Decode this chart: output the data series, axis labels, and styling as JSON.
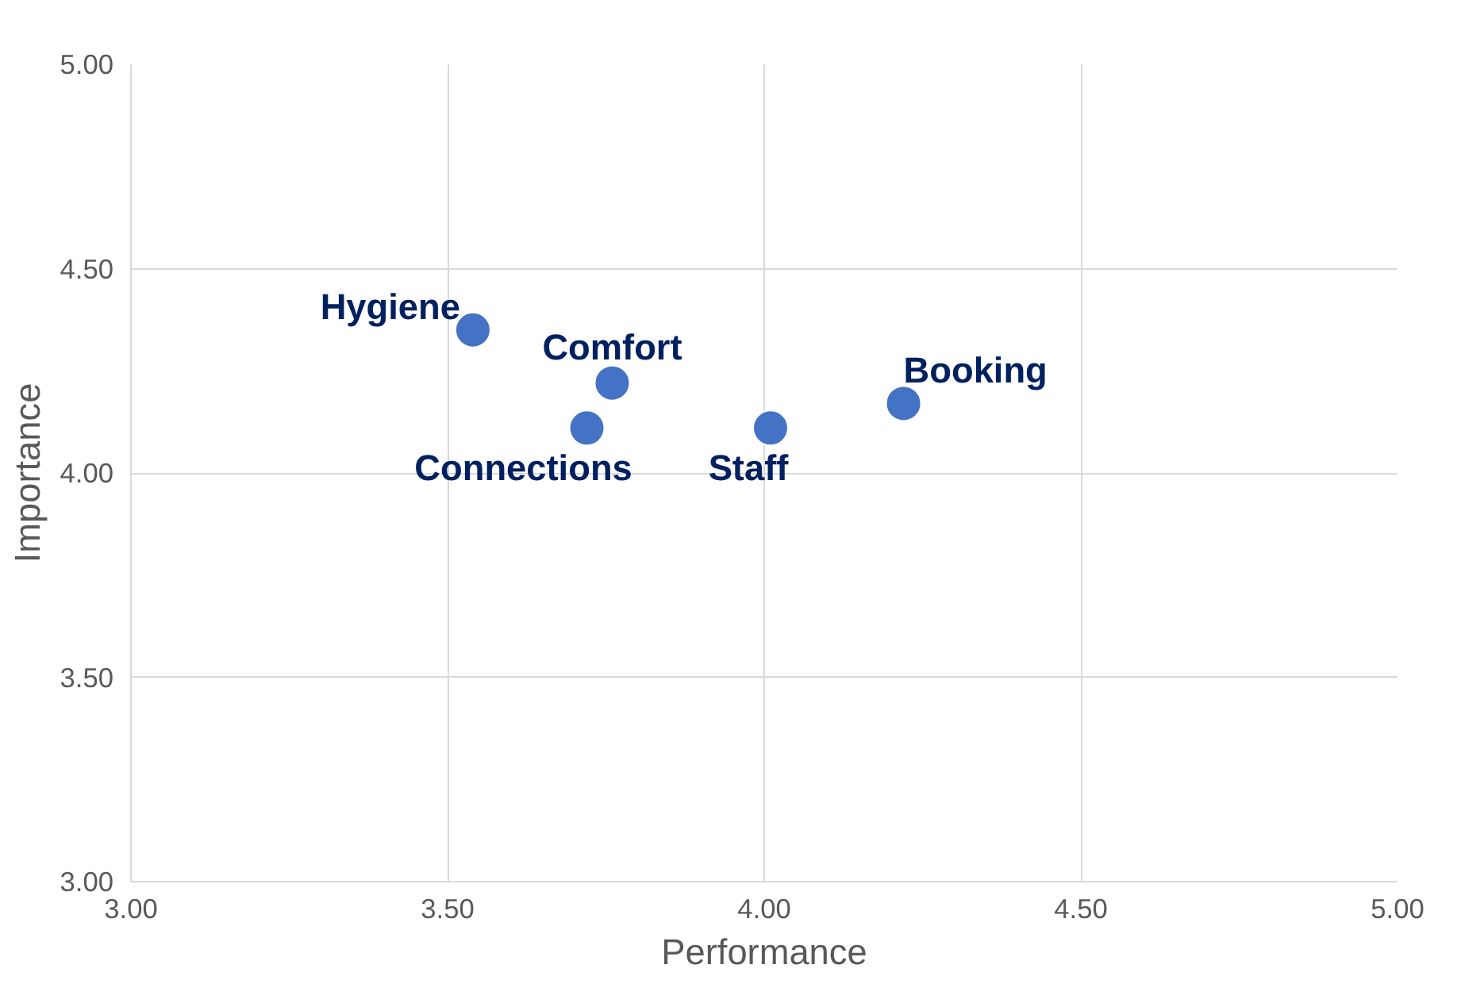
{
  "chart_data": {
    "type": "scatter",
    "xlabel": "Performance",
    "ylabel": "Importance",
    "x": [
      3.54,
      3.76,
      3.72,
      4.01,
      4.22
    ],
    "series": [
      {
        "color": "#4472c4",
        "values": [
          4.35,
          4.22,
          4.11,
          4.11,
          4.17
        ]
      }
    ],
    "annotations": [
      {
        "text": "Hygiene",
        "x": 3.54,
        "y": 4.35
      },
      {
        "text": "Comfort",
        "x": 3.76,
        "y": 4.22
      },
      {
        "text": "Connections",
        "x": 3.72,
        "y": 4.11
      },
      {
        "text": "Staff",
        "x": 4.01,
        "y": 4.11
      },
      {
        "text": "Booking",
        "x": 4.22,
        "y": 4.17
      }
    ],
    "xlim": [
      3,
      5
    ],
    "ylim": [
      3,
      5
    ],
    "xticks": [
      {
        "value": 3,
        "label": "3.00"
      },
      {
        "value": 3.5,
        "label": "3.50"
      },
      {
        "value": 4,
        "label": "4.00"
      },
      {
        "value": 4.5,
        "label": "4.50"
      },
      {
        "value": 5,
        "label": "5.00"
      }
    ],
    "yticks": [
      {
        "value": 3,
        "label": "3.00"
      },
      {
        "value": 3.5,
        "label": "3.50"
      },
      {
        "value": 4,
        "label": "4.00"
      },
      {
        "value": 4.5,
        "label": "4.50"
      },
      {
        "value": 5,
        "label": "5.00"
      }
    ],
    "grid": true,
    "marker": "circle"
  }
}
